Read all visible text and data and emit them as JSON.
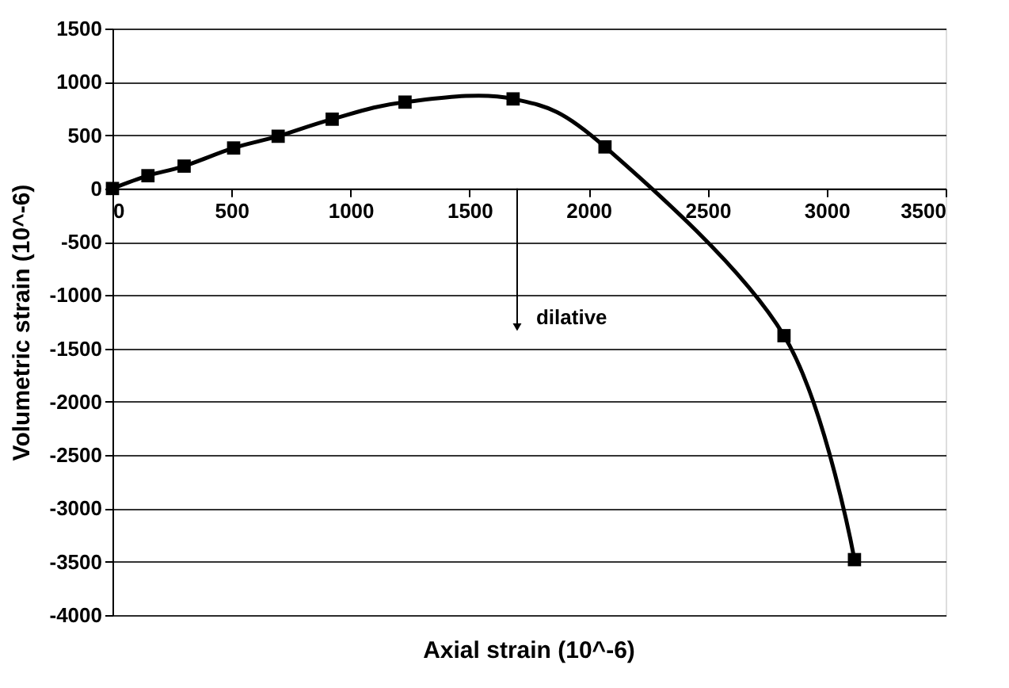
{
  "chart_data": {
    "type": "line",
    "xlabel": "Axial strain (10^-6)",
    "ylabel": "Volumetric strain (10^-6)",
    "x": [
      0,
      149,
      301,
      509,
      696,
      923,
      1229,
      1683,
      2069,
      2821,
      3117
    ],
    "series": [
      {
        "color": "#000000",
        "values": [
          0,
          120,
          210,
          380,
          490,
          650,
          810,
          840,
          390,
          -1380,
          -3480
        ]
      }
    ],
    "xlim": [
      0,
      3500
    ],
    "xticks": [
      0,
      500,
      1000,
      1500,
      2000,
      2500,
      3000,
      3500
    ],
    "ylim": [
      -4000,
      1500
    ],
    "yticks": [
      -4000,
      -3500,
      -3000,
      -2500,
      -2000,
      -1500,
      -1000,
      -500,
      0,
      500,
      1000,
      1500
    ],
    "grid": "y",
    "marker": "square",
    "line_style": "solid",
    "annotations": [
      {
        "text": "dilative",
        "x": 1700,
        "y": -1300
      }
    ]
  }
}
